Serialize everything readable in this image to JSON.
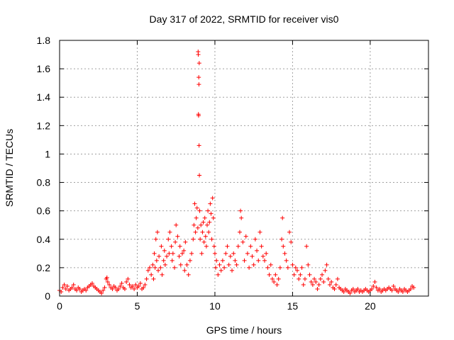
{
  "chart_data": {
    "type": "scatter",
    "title": "Day 317 of 2022, SRMTID for receiver vis0",
    "xlabel": "GPS time / hours",
    "ylabel": "SRMTID / TECUs",
    "xlim": [
      0,
      23.75
    ],
    "ylim": [
      0,
      1.8
    ],
    "xticks": [
      0,
      5,
      10,
      15,
      20
    ],
    "xtick_labels": [
      "0",
      "5",
      "10",
      "15",
      "20"
    ],
    "yticks": [
      0,
      0.2,
      0.4,
      0.6,
      0.8,
      1.0,
      1.2,
      1.4,
      1.6,
      1.8
    ],
    "ytick_labels": [
      "0",
      "0.2",
      "0.4",
      "0.6",
      "0.8",
      "1",
      "1.2",
      "1.4",
      "1.6",
      "1.8"
    ],
    "grid": true,
    "marker": "+",
    "color": "#ff0000",
    "series": [
      {
        "name": "SRMTID",
        "points": [
          [
            0.0,
            0.04
          ],
          [
            0.1,
            0.03
          ],
          [
            0.2,
            0.06
          ],
          [
            0.3,
            0.08
          ],
          [
            0.4,
            0.05
          ],
          [
            0.5,
            0.07
          ],
          [
            0.6,
            0.04
          ],
          [
            0.7,
            0.05
          ],
          [
            0.8,
            0.06
          ],
          [
            0.9,
            0.08
          ],
          [
            1.0,
            0.05
          ],
          [
            1.1,
            0.04
          ],
          [
            1.2,
            0.06
          ],
          [
            1.3,
            0.05
          ],
          [
            1.4,
            0.03
          ],
          [
            1.5,
            0.04
          ],
          [
            1.6,
            0.05
          ],
          [
            1.7,
            0.04
          ],
          [
            1.8,
            0.06
          ],
          [
            1.9,
            0.07
          ],
          [
            2.0,
            0.08
          ],
          [
            2.1,
            0.09
          ],
          [
            2.2,
            0.07
          ],
          [
            2.3,
            0.06
          ],
          [
            2.4,
            0.05
          ],
          [
            2.5,
            0.04
          ],
          [
            2.6,
            0.03
          ],
          [
            2.7,
            0.02
          ],
          [
            2.8,
            0.04
          ],
          [
            2.9,
            0.06
          ],
          [
            3.0,
            0.12
          ],
          [
            3.05,
            0.13
          ],
          [
            3.1,
            0.1
          ],
          [
            3.2,
            0.08
          ],
          [
            3.3,
            0.06
          ],
          [
            3.4,
            0.05
          ],
          [
            3.5,
            0.07
          ],
          [
            3.6,
            0.06
          ],
          [
            3.7,
            0.04
          ],
          [
            3.8,
            0.05
          ],
          [
            3.9,
            0.07
          ],
          [
            4.0,
            0.09
          ],
          [
            4.1,
            0.06
          ],
          [
            4.2,
            0.05
          ],
          [
            4.3,
            0.1
          ],
          [
            4.4,
            0.12
          ],
          [
            4.5,
            0.08
          ],
          [
            4.6,
            0.06
          ],
          [
            4.7,
            0.07
          ],
          [
            4.8,
            0.05
          ],
          [
            4.9,
            0.08
          ],
          [
            5.0,
            0.06
          ],
          [
            5.1,
            0.07
          ],
          [
            5.2,
            0.09
          ],
          [
            5.3,
            0.05
          ],
          [
            5.4,
            0.06
          ],
          [
            5.5,
            0.08
          ],
          [
            5.6,
            0.12
          ],
          [
            5.7,
            0.18
          ],
          [
            5.8,
            0.2
          ],
          [
            5.9,
            0.15
          ],
          [
            6.0,
            0.22
          ],
          [
            6.05,
            0.12
          ],
          [
            6.1,
            0.3
          ],
          [
            6.15,
            0.2
          ],
          [
            6.2,
            0.4
          ],
          [
            6.25,
            0.25
          ],
          [
            6.3,
            0.45
          ],
          [
            6.35,
            0.18
          ],
          [
            6.4,
            0.28
          ],
          [
            6.5,
            0.2
          ],
          [
            6.55,
            0.35
          ],
          [
            6.6,
            0.15
          ],
          [
            6.7,
            0.25
          ],
          [
            6.75,
            0.32
          ],
          [
            6.8,
            0.22
          ],
          [
            6.9,
            0.28
          ],
          [
            7.0,
            0.4
          ],
          [
            7.05,
            0.3
          ],
          [
            7.1,
            0.45
          ],
          [
            7.2,
            0.35
          ],
          [
            7.25,
            0.25
          ],
          [
            7.3,
            0.3
          ],
          [
            7.4,
            0.2
          ],
          [
            7.45,
            0.38
          ],
          [
            7.5,
            0.5
          ],
          [
            7.6,
            0.42
          ],
          [
            7.7,
            0.28
          ],
          [
            7.75,
            0.35
          ],
          [
            7.8,
            0.22
          ],
          [
            7.9,
            0.3
          ],
          [
            8.0,
            0.32
          ],
          [
            8.05,
            0.18
          ],
          [
            8.1,
            0.38
          ],
          [
            8.2,
            0.22
          ],
          [
            8.3,
            0.15
          ],
          [
            8.4,
            0.25
          ],
          [
            8.5,
            0.3
          ],
          [
            8.6,
            0.4
          ],
          [
            8.65,
            0.5
          ],
          [
            8.7,
            0.65
          ],
          [
            8.75,
            0.45
          ],
          [
            8.8,
            0.55
          ],
          [
            8.85,
            0.62
          ],
          [
            8.9,
            0.48
          ],
          [
            8.92,
            1.72
          ],
          [
            8.93,
            1.7
          ],
          [
            8.94,
            1.28
          ],
          [
            8.95,
            1.27
          ],
          [
            8.96,
            1.54
          ],
          [
            8.97,
            1.49
          ],
          [
            8.98,
            1.06
          ],
          [
            8.99,
            1.64
          ],
          [
            9.0,
            0.85
          ],
          [
            9.02,
            0.6
          ],
          [
            9.05,
            0.4
          ],
          [
            9.1,
            0.5
          ],
          [
            9.15,
            0.3
          ],
          [
            9.2,
            0.45
          ],
          [
            9.25,
            0.52
          ],
          [
            9.3,
            0.38
          ],
          [
            9.35,
            0.55
          ],
          [
            9.4,
            0.42
          ],
          [
            9.45,
            0.35
          ],
          [
            9.5,
            0.5
          ],
          [
            9.55,
            0.6
          ],
          [
            9.6,
            0.45
          ],
          [
            9.65,
            0.52
          ],
          [
            9.7,
            0.65
          ],
          [
            9.75,
            0.58
          ],
          [
            9.8,
            0.4
          ],
          [
            9.85,
            0.69
          ],
          [
            9.9,
            0.55
          ],
          [
            9.95,
            0.35
          ],
          [
            10.0,
            0.3
          ],
          [
            10.05,
            0.2
          ],
          [
            10.1,
            0.25
          ],
          [
            10.2,
            0.15
          ],
          [
            10.3,
            0.22
          ],
          [
            10.4,
            0.18
          ],
          [
            10.5,
            0.25
          ],
          [
            10.6,
            0.2
          ],
          [
            10.7,
            0.3
          ],
          [
            10.8,
            0.35
          ],
          [
            10.9,
            0.22
          ],
          [
            11.0,
            0.28
          ],
          [
            11.1,
            0.18
          ],
          [
            11.2,
            0.3
          ],
          [
            11.3,
            0.25
          ],
          [
            11.4,
            0.22
          ],
          [
            11.5,
            0.35
          ],
          [
            11.6,
            0.45
          ],
          [
            11.65,
            0.6
          ],
          [
            11.7,
            0.55
          ],
          [
            11.8,
            0.38
          ],
          [
            11.9,
            0.25
          ],
          [
            12.0,
            0.42
          ],
          [
            12.1,
            0.3
          ],
          [
            12.2,
            0.2
          ],
          [
            12.3,
            0.35
          ],
          [
            12.4,
            0.28
          ],
          [
            12.5,
            0.22
          ],
          [
            12.6,
            0.4
          ],
          [
            12.7,
            0.32
          ],
          [
            12.8,
            0.25
          ],
          [
            12.9,
            0.45
          ],
          [
            13.0,
            0.35
          ],
          [
            13.1,
            0.28
          ],
          [
            13.2,
            0.25
          ],
          [
            13.3,
            0.3
          ],
          [
            13.4,
            0.2
          ],
          [
            13.5,
            0.15
          ],
          [
            13.6,
            0.22
          ],
          [
            13.7,
            0.12
          ],
          [
            13.8,
            0.1
          ],
          [
            13.9,
            0.15
          ],
          [
            14.0,
            0.08
          ],
          [
            14.1,
            0.12
          ],
          [
            14.2,
            0.2
          ],
          [
            14.3,
            0.4
          ],
          [
            14.35,
            0.55
          ],
          [
            14.4,
            0.35
          ],
          [
            14.5,
            0.3
          ],
          [
            14.6,
            0.25
          ],
          [
            14.7,
            0.2
          ],
          [
            14.8,
            0.45
          ],
          [
            14.9,
            0.38
          ],
          [
            15.0,
            0.22
          ],
          [
            15.1,
            0.15
          ],
          [
            15.2,
            0.2
          ],
          [
            15.3,
            0.18
          ],
          [
            15.4,
            0.12
          ],
          [
            15.5,
            0.15
          ],
          [
            15.6,
            0.2
          ],
          [
            15.7,
            0.08
          ],
          [
            15.8,
            0.12
          ],
          [
            15.9,
            0.35
          ],
          [
            16.0,
            0.22
          ],
          [
            16.1,
            0.15
          ],
          [
            16.2,
            0.1
          ],
          [
            16.3,
            0.08
          ],
          [
            16.4,
            0.12
          ],
          [
            16.5,
            0.1
          ],
          [
            16.6,
            0.05
          ],
          [
            16.7,
            0.08
          ],
          [
            16.8,
            0.12
          ],
          [
            16.9,
            0.15
          ],
          [
            17.0,
            0.1
          ],
          [
            17.1,
            0.18
          ],
          [
            17.2,
            0.22
          ],
          [
            17.3,
            0.12
          ],
          [
            17.4,
            0.08
          ],
          [
            17.5,
            0.1
          ],
          [
            17.6,
            0.06
          ],
          [
            17.7,
            0.05
          ],
          [
            17.8,
            0.08
          ],
          [
            17.9,
            0.12
          ],
          [
            18.0,
            0.06
          ],
          [
            18.1,
            0.05
          ],
          [
            18.2,
            0.04
          ],
          [
            18.3,
            0.03
          ],
          [
            18.4,
            0.05
          ],
          [
            18.5,
            0.04
          ],
          [
            18.6,
            0.03
          ],
          [
            18.7,
            0.02
          ],
          [
            18.8,
            0.04
          ],
          [
            18.9,
            0.05
          ],
          [
            19.0,
            0.03
          ],
          [
            19.1,
            0.04
          ],
          [
            19.2,
            0.05
          ],
          [
            19.3,
            0.03
          ],
          [
            19.4,
            0.04
          ],
          [
            19.5,
            0.03
          ],
          [
            19.6,
            0.04
          ],
          [
            19.7,
            0.05
          ],
          [
            19.8,
            0.04
          ],
          [
            19.9,
            0.03
          ],
          [
            20.0,
            0.04
          ],
          [
            20.1,
            0.05
          ],
          [
            20.2,
            0.07
          ],
          [
            20.3,
            0.1
          ],
          [
            20.4,
            0.06
          ],
          [
            20.5,
            0.04
          ],
          [
            20.6,
            0.05
          ],
          [
            20.7,
            0.03
          ],
          [
            20.8,
            0.04
          ],
          [
            20.9,
            0.05
          ],
          [
            21.0,
            0.04
          ],
          [
            21.1,
            0.05
          ],
          [
            21.2,
            0.06
          ],
          [
            21.3,
            0.05
          ],
          [
            21.4,
            0.04
          ],
          [
            21.5,
            0.07
          ],
          [
            21.6,
            0.05
          ],
          [
            21.7,
            0.04
          ],
          [
            21.8,
            0.03
          ],
          [
            21.9,
            0.05
          ],
          [
            22.0,
            0.04
          ],
          [
            22.1,
            0.03
          ],
          [
            22.2,
            0.05
          ],
          [
            22.3,
            0.04
          ],
          [
            22.4,
            0.03
          ],
          [
            22.5,
            0.04
          ],
          [
            22.6,
            0.05
          ],
          [
            22.7,
            0.07
          ],
          [
            22.8,
            0.06
          ]
        ]
      }
    ]
  }
}
